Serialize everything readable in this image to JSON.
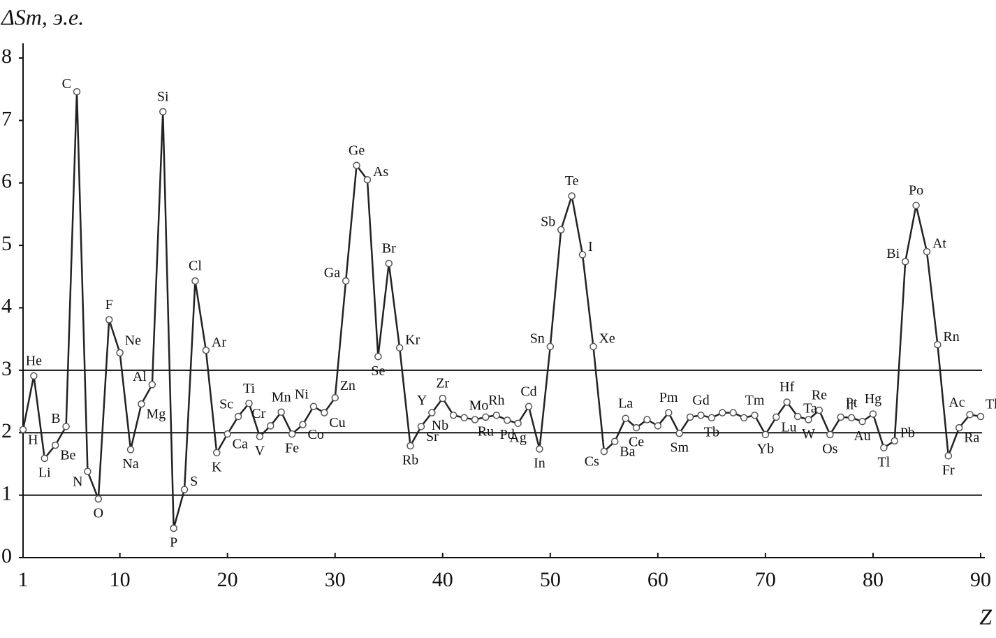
{
  "chart_data": {
    "type": "line",
    "ylabel": "ΔSm, э.е.",
    "xlabel": "Z",
    "x": [
      1,
      2,
      3,
      4,
      5,
      6,
      7,
      8,
      9,
      10,
      11,
      12,
      13,
      14,
      15,
      16,
      17,
      18,
      19,
      20,
      21,
      22,
      23,
      24,
      25,
      26,
      27,
      28,
      29,
      30,
      31,
      32,
      33,
      34,
      35,
      36,
      37,
      38,
      39,
      40,
      41,
      42,
      43,
      44,
      45,
      46,
      47,
      48,
      49,
      50,
      51,
      52,
      53,
      54,
      55,
      56,
      57,
      58,
      59,
      60,
      61,
      62,
      63,
      64,
      65,
      66,
      67,
      68,
      69,
      70,
      71,
      72,
      73,
      74,
      75,
      76,
      77,
      78,
      79,
      80,
      81,
      82,
      83,
      84,
      85,
      86,
      87,
      88,
      89,
      90
    ],
    "values": [
      2.05,
      2.91,
      1.59,
      1.8,
      2.1,
      7.46,
      1.38,
      0.94,
      3.81,
      3.28,
      1.73,
      2.46,
      2.77,
      7.14,
      0.47,
      1.09,
      4.43,
      3.32,
      1.68,
      1.98,
      2.26,
      2.47,
      1.94,
      2.11,
      2.33,
      1.98,
      2.13,
      2.42,
      2.32,
      2.56,
      4.43,
      6.28,
      6.05,
      3.22,
      4.71,
      3.36,
      1.79,
      2.1,
      2.32,
      2.55,
      2.28,
      2.24,
      2.21,
      2.25,
      2.28,
      2.2,
      2.15,
      2.42,
      1.74,
      3.38,
      5.25,
      5.79,
      4.85,
      3.38,
      1.7,
      1.86,
      2.23,
      2.08,
      2.21,
      2.11,
      2.32,
      1.99,
      2.25,
      2.28,
      2.24,
      2.32,
      2.32,
      2.24,
      2.28,
      1.97,
      2.25,
      2.49,
      2.26,
      2.21,
      2.36,
      1.97,
      2.25,
      2.24,
      2.18,
      2.3,
      1.76,
      1.87,
      4.74,
      5.64,
      4.9,
      3.41,
      1.63,
      2.08,
      2.29,
      2.26
    ],
    "point_labels": [
      "H",
      "He",
      "Li",
      "Be",
      "B",
      "C",
      "N",
      "O",
      "F",
      "Ne",
      "Na",
      "Mg",
      "Al",
      "Si",
      "P",
      "S",
      "Cl",
      "Ar",
      "K",
      "Ca",
      "Sc",
      "Ti",
      "V",
      "Cr",
      "Mn",
      "Fe",
      "Co",
      "Ni",
      "Cu",
      "Zn",
      "Ga",
      "Ge",
      "As",
      "Se",
      "Br",
      "Kr",
      "Rb",
      "Sr",
      "Y",
      "Zr",
      "Nb",
      "Mo",
      null,
      "Ru",
      "Rh",
      "Pd",
      "Ag",
      "Cd",
      "In",
      "Sn",
      "Sb",
      "Te",
      "I",
      "Xe",
      "Cs",
      "Ba",
      "La",
      "Ce",
      null,
      null,
      "Pm",
      "Sm",
      null,
      "Gd",
      "Tb",
      null,
      null,
      null,
      "Tm",
      "Yb",
      "Lu",
      "Hf",
      "Ta",
      "W",
      "Re",
      "Os",
      "Ir",
      "Pt",
      "Au",
      "Hg",
      "Tl",
      "Pb",
      "Bi",
      "Po",
      "At",
      "Rn",
      "Fr",
      "Ra",
      "Ac",
      "Th"
    ],
    "color": "#222222",
    "marker_fill": "#ffffff",
    "xlim": [
      1,
      90
    ],
    "xticks": [
      1,
      10,
      20,
      30,
      40,
      50,
      60,
      70,
      80,
      90
    ],
    "ylim": [
      0,
      8
    ],
    "yticks": [
      0,
      1,
      2,
      3,
      4,
      5,
      6,
      7,
      8
    ],
    "hlines": [
      1,
      2,
      3
    ]
  }
}
